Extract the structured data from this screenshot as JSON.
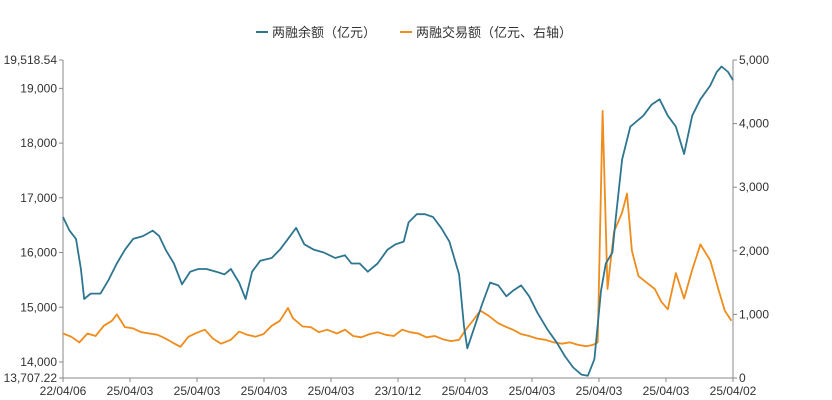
{
  "chart_data": {
    "type": "line",
    "title": "",
    "legend_position": "top-center",
    "grid": false,
    "x": {
      "tick_labels": [
        "22/04/06",
        "25/04/03",
        "25/04/03",
        "25/04/03",
        "25/04/03",
        "23/10/12",
        "25/04/03",
        "25/04/03",
        "25/04/03",
        "25/04/03",
        "25/04/02"
      ]
    },
    "y_left": {
      "ylim": [
        13707.22,
        19518.54
      ],
      "ticks": [
        13707.22,
        14000,
        15000,
        16000,
        17000,
        18000,
        19000,
        19518.54
      ],
      "tick_labels": [
        "13,707.22",
        "14,000",
        "15,000",
        "16,000",
        "17,000",
        "18,000",
        "19,000",
        "19,518.54"
      ]
    },
    "y_right": {
      "ylim": [
        0,
        5000
      ],
      "ticks": [
        0,
        1000,
        2000,
        3000,
        4000,
        5000
      ],
      "tick_labels": [
        "0",
        "1,000",
        "2,000",
        "3,000",
        "4,000",
        "5,000"
      ]
    },
    "series": [
      {
        "name": "两融余额（亿元）",
        "axis": "left",
        "color": "#2e7590",
        "values": [
          [
            0,
            16650
          ],
          [
            0.8,
            16400
          ],
          [
            1.6,
            16250
          ],
          [
            2.2,
            15700
          ],
          [
            2.6,
            15150
          ],
          [
            3.4,
            15250
          ],
          [
            4.6,
            15250
          ],
          [
            5.6,
            15500
          ],
          [
            6.6,
            15800
          ],
          [
            7.6,
            16050
          ],
          [
            8.6,
            16250
          ],
          [
            9.8,
            16300
          ],
          [
            11,
            16400
          ],
          [
            11.8,
            16300
          ],
          [
            12.6,
            16050
          ],
          [
            13.6,
            15800
          ],
          [
            14.6,
            15420
          ],
          [
            15.6,
            15650
          ],
          [
            16.6,
            15700
          ],
          [
            17.6,
            15700
          ],
          [
            18.8,
            15650
          ],
          [
            19.8,
            15600
          ],
          [
            20.6,
            15700
          ],
          [
            21.6,
            15450
          ],
          [
            22.4,
            15150
          ],
          [
            23.2,
            15650
          ],
          [
            24.2,
            15850
          ],
          [
            25.6,
            15900
          ],
          [
            26.6,
            16050
          ],
          [
            27.6,
            16250
          ],
          [
            28.6,
            16450
          ],
          [
            29.6,
            16150
          ],
          [
            30.8,
            16050
          ],
          [
            32,
            16000
          ],
          [
            33.4,
            15900
          ],
          [
            34.6,
            15950
          ],
          [
            35.4,
            15800
          ],
          [
            36.4,
            15800
          ],
          [
            37.4,
            15650
          ],
          [
            38.6,
            15800
          ],
          [
            39.8,
            16050
          ],
          [
            40.8,
            16150
          ],
          [
            41.8,
            16200
          ],
          [
            42.4,
            16550
          ],
          [
            43.4,
            16700
          ],
          [
            44.4,
            16700
          ],
          [
            45.4,
            16650
          ],
          [
            46.4,
            16450
          ],
          [
            47.4,
            16200
          ],
          [
            48.6,
            15600
          ],
          [
            49.2,
            14650
          ],
          [
            49.6,
            14250
          ],
          [
            50.4,
            14600
          ],
          [
            51.4,
            15050
          ],
          [
            52.4,
            15450
          ],
          [
            53.4,
            15400
          ],
          [
            54.4,
            15200
          ],
          [
            55.2,
            15300
          ],
          [
            56.2,
            15400
          ],
          [
            57.2,
            15200
          ],
          [
            58.2,
            14900
          ],
          [
            59.4,
            14600
          ],
          [
            60.6,
            14350
          ],
          [
            61.6,
            14100
          ],
          [
            62.6,
            13900
          ],
          [
            63.6,
            13770
          ],
          [
            64.4,
            13750
          ],
          [
            65.2,
            14050
          ],
          [
            66,
            15300
          ],
          [
            66.6,
            15800
          ],
          [
            67.4,
            16000
          ],
          [
            67.8,
            16600
          ],
          [
            68.6,
            17700
          ],
          [
            69.6,
            18300
          ],
          [
            70.4,
            18400
          ],
          [
            71.2,
            18500
          ],
          [
            72.2,
            18700
          ],
          [
            73.2,
            18800
          ],
          [
            74.2,
            18500
          ],
          [
            75.2,
            18300
          ],
          [
            76.2,
            17800
          ],
          [
            77.2,
            18500
          ],
          [
            78.2,
            18800
          ],
          [
            79.4,
            19050
          ],
          [
            80.2,
            19300
          ],
          [
            80.8,
            19400
          ],
          [
            81.6,
            19300
          ],
          [
            82.2,
            19150
          ]
        ]
      },
      {
        "name": "两融交易额（亿元、右轴）",
        "axis": "right",
        "color": "#ef8c1c",
        "values": [
          [
            0,
            700
          ],
          [
            1,
            650
          ],
          [
            2,
            560
          ],
          [
            3,
            700
          ],
          [
            4,
            660
          ],
          [
            5,
            820
          ],
          [
            6,
            900
          ],
          [
            6.6,
            1000
          ],
          [
            7.6,
            800
          ],
          [
            8.6,
            780
          ],
          [
            9.6,
            720
          ],
          [
            10.6,
            700
          ],
          [
            11.6,
            680
          ],
          [
            12.6,
            620
          ],
          [
            13.4,
            560
          ],
          [
            14.4,
            490
          ],
          [
            15.4,
            650
          ],
          [
            16.4,
            710
          ],
          [
            17.4,
            760
          ],
          [
            18.4,
            620
          ],
          [
            19.4,
            540
          ],
          [
            20.6,
            600
          ],
          [
            21.6,
            730
          ],
          [
            22.6,
            680
          ],
          [
            23.6,
            650
          ],
          [
            24.6,
            690
          ],
          [
            25.6,
            820
          ],
          [
            26.6,
            900
          ],
          [
            27.6,
            1100
          ],
          [
            28.2,
            940
          ],
          [
            29.4,
            810
          ],
          [
            30.4,
            800
          ],
          [
            31.4,
            720
          ],
          [
            32.4,
            760
          ],
          [
            33.6,
            700
          ],
          [
            34.6,
            760
          ],
          [
            35.6,
            660
          ],
          [
            36.6,
            640
          ],
          [
            37.6,
            690
          ],
          [
            38.6,
            720
          ],
          [
            39.6,
            680
          ],
          [
            40.6,
            660
          ],
          [
            41.6,
            760
          ],
          [
            42.6,
            720
          ],
          [
            43.6,
            700
          ],
          [
            44.6,
            640
          ],
          [
            45.6,
            660
          ],
          [
            46.6,
            610
          ],
          [
            47.6,
            580
          ],
          [
            48.6,
            600
          ],
          [
            49.4,
            760
          ],
          [
            50.4,
            920
          ],
          [
            51.2,
            1060
          ],
          [
            52.2,
            980
          ],
          [
            53.4,
            860
          ],
          [
            54.4,
            800
          ],
          [
            55.2,
            760
          ],
          [
            56.2,
            690
          ],
          [
            57.2,
            660
          ],
          [
            58.2,
            620
          ],
          [
            59.2,
            600
          ],
          [
            60.2,
            560
          ],
          [
            61.2,
            540
          ],
          [
            62.2,
            560
          ],
          [
            63.2,
            520
          ],
          [
            64.2,
            500
          ],
          [
            65,
            520
          ],
          [
            65.6,
            560
          ],
          [
            66.2,
            4200
          ],
          [
            66.8,
            1400
          ],
          [
            67.6,
            2300
          ],
          [
            68.6,
            2600
          ],
          [
            69.2,
            2900
          ],
          [
            69.8,
            2000
          ],
          [
            70.6,
            1600
          ],
          [
            71.6,
            1500
          ],
          [
            72.6,
            1400
          ],
          [
            73.4,
            1200
          ],
          [
            74.2,
            1080
          ],
          [
            75.2,
            1650
          ],
          [
            76.2,
            1250
          ],
          [
            77.2,
            1700
          ],
          [
            78.2,
            2100
          ],
          [
            79.4,
            1850
          ],
          [
            80.4,
            1400
          ],
          [
            81.2,
            1060
          ],
          [
            82,
            900
          ]
        ]
      }
    ]
  }
}
